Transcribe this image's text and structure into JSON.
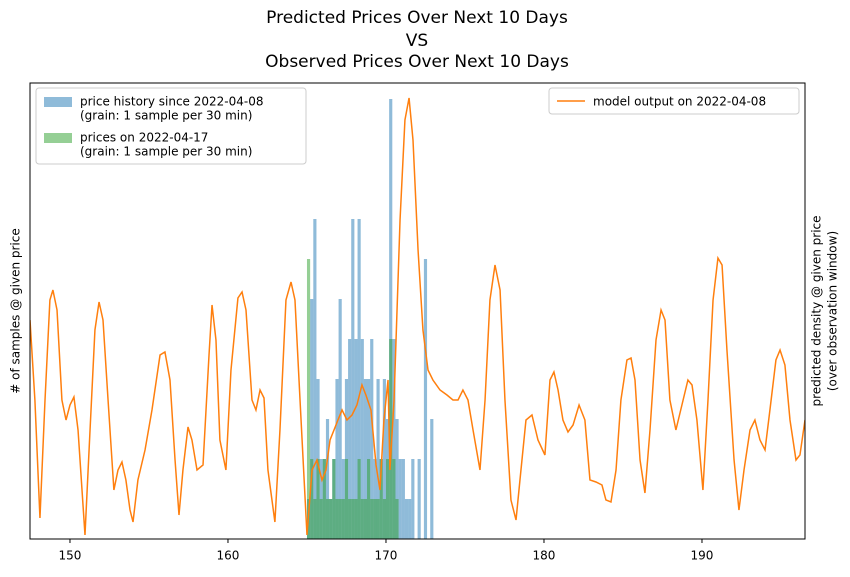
{
  "chart_data": {
    "type": "histogram",
    "title": [
      "Predicted Prices Over Next 10 Days",
      "VS",
      "Observed Prices Over Next 10 Days"
    ],
    "ylabel": "# of samples @ given price",
    "y2label": [
      "predicted density @ given price",
      "(over observation window)"
    ],
    "xlim": [
      147.47,
      196.52
    ],
    "xticks": [
      150,
      160,
      170,
      180,
      190
    ],
    "ylim": [
      0,
      11.4
    ],
    "y2lim": [
      0,
      456
    ],
    "legend": {
      "y": "upper left",
      "y2": "upper right"
    },
    "series": [
      {
        "name": [
          "price history since 2022-04-08",
          "(grain: 1 sample per 30 min)"
        ],
        "color": "#1f77b4",
        "opacity": 0.5,
        "bins": [
          165.0,
          165.2,
          165.4,
          165.6,
          165.8,
          166.0,
          166.2,
          166.4,
          166.6,
          166.8,
          167.0,
          167.2,
          167.4,
          167.6,
          167.8,
          168.0,
          168.2,
          168.4,
          168.6,
          168.8,
          169.0,
          169.2,
          169.4,
          169.6,
          169.8,
          170.0,
          170.2,
          170.4,
          170.6,
          170.8,
          171.0,
          171.2,
          171.4,
          171.6,
          171.8,
          172.0,
          172.2,
          172.4,
          172.6,
          172.8,
          173.0,
          173.2
        ],
        "values": [
          1,
          6,
          8,
          4,
          2,
          2,
          3,
          1,
          2,
          4,
          6,
          2,
          4,
          5,
          8,
          5,
          8,
          5,
          4,
          4,
          5,
          2,
          4,
          2,
          4,
          3,
          11,
          5,
          3,
          2,
          2,
          1,
          1,
          2,
          0,
          2,
          0,
          7,
          0,
          3,
          0
        ]
      },
      {
        "name": [
          "prices on 2022-04-17",
          "(grain: 1 sample per 30 min)"
        ],
        "color": "#2ca02c",
        "opacity": 0.5,
        "bins": [
          165.0,
          165.2,
          165.4,
          165.6,
          165.8,
          166.0,
          166.2,
          166.4,
          166.6,
          166.8,
          167.0,
          167.2,
          167.4,
          167.6,
          167.8,
          168.0,
          168.2,
          168.4,
          168.6,
          168.8,
          169.0,
          169.2,
          169.4,
          169.6,
          169.8,
          170.0,
          170.2,
          170.4,
          170.6,
          170.8
        ],
        "values": [
          7,
          2,
          1,
          2,
          1,
          2,
          1,
          1,
          2,
          1,
          1,
          1,
          2,
          1,
          1,
          1,
          2,
          1,
          1,
          2,
          1,
          1,
          1,
          2,
          1,
          2,
          5,
          2,
          1
        ]
      },
      {
        "name": [
          "model output on 2022-04-08"
        ],
        "color": "#ff7f0e",
        "type": "line",
        "axis": "y2",
        "x": [
          147.47,
          147.78,
          148.1,
          148.42,
          148.73,
          148.92,
          149.18,
          149.49,
          149.75,
          150.0,
          150.25,
          150.51,
          150.95,
          151.27,
          151.58,
          151.84,
          152.09,
          152.41,
          152.78,
          153.04,
          153.29,
          153.54,
          153.8,
          153.99,
          154.3,
          154.75,
          155.19,
          155.7,
          156.01,
          156.33,
          156.65,
          156.9,
          157.15,
          157.47,
          157.72,
          158.04,
          158.42,
          158.8,
          158.99,
          159.24,
          159.49,
          159.87,
          160.19,
          160.63,
          160.89,
          161.14,
          161.52,
          161.77,
          162.03,
          162.28,
          162.53,
          162.97,
          163.29,
          163.67,
          163.99,
          164.24,
          164.56,
          165.0,
          165.32,
          165.63,
          165.95,
          166.2,
          166.46,
          166.71,
          166.96,
          167.22,
          167.53,
          167.85,
          168.16,
          168.48,
          168.73,
          169.05,
          169.37,
          169.62,
          169.87,
          170.13,
          170.25,
          170.51,
          170.89,
          171.2,
          171.46,
          171.71,
          172.03,
          172.34,
          172.66,
          172.97,
          173.42,
          173.86,
          174.24,
          174.56,
          174.87,
          175.19,
          175.51,
          175.95,
          176.27,
          176.58,
          176.9,
          177.22,
          177.53,
          177.91,
          178.23,
          178.48,
          178.86,
          179.24,
          179.62,
          180.06,
          180.38,
          180.63,
          180.89,
          181.2,
          181.52,
          181.84,
          182.22,
          182.59,
          182.91,
          183.29,
          183.67,
          183.92,
          184.24,
          184.56,
          184.87,
          185.25,
          185.51,
          185.76,
          186.08,
          186.39,
          186.71,
          187.09,
          187.41,
          187.66,
          187.97,
          188.35,
          188.73,
          189.11,
          189.37,
          189.68,
          190.06,
          190.38,
          190.7,
          191.01,
          191.27,
          191.58,
          192.03,
          192.34,
          192.66,
          193.04,
          193.35,
          193.67,
          193.99,
          194.3,
          194.68,
          194.94,
          195.25,
          195.57,
          195.95,
          196.2,
          196.52
        ],
        "values": [
          219,
          139,
          21,
          139,
          239,
          249,
          229,
          139,
          119,
          134,
          142,
          109,
          4,
          109,
          209,
          237,
          219,
          139,
          49,
          69,
          77,
          59,
          29,
          17,
          59,
          89,
          129,
          184,
          187,
          159,
          79,
          24,
          69,
          112,
          99,
          69,
          74,
          184,
          234,
          199,
          99,
          69,
          169,
          241,
          247,
          229,
          139,
          129,
          149,
          141,
          69,
          17,
          109,
          239,
          257,
          239,
          139,
          4,
          69,
          79,
          59,
          69,
          99,
          109,
          119,
          129,
          119,
          124,
          134,
          154,
          144,
          129,
          74,
          49,
          119,
          159,
          69,
          139,
          319,
          419,
          441,
          399,
          289,
          209,
          169,
          159,
          149,
          144,
          139,
          139,
          149,
          139,
          109,
          69,
          139,
          239,
          274,
          249,
          139,
          39,
          19,
          59,
          119,
          124,
          99,
          84,
          159,
          167,
          149,
          119,
          107,
          114,
          134,
          119,
          59,
          57,
          54,
          39,
          37,
          69,
          139,
          179,
          181,
          159,
          79,
          46,
          109,
          199,
          229,
          219,
          139,
          109,
          134,
          159,
          154,
          119,
          49,
          139,
          239,
          281,
          274,
          189,
          79,
          29,
          69,
          109,
          119,
          99,
          89,
          129,
          179,
          189,
          174,
          119,
          79,
          84,
          119
        ]
      }
    ]
  }
}
